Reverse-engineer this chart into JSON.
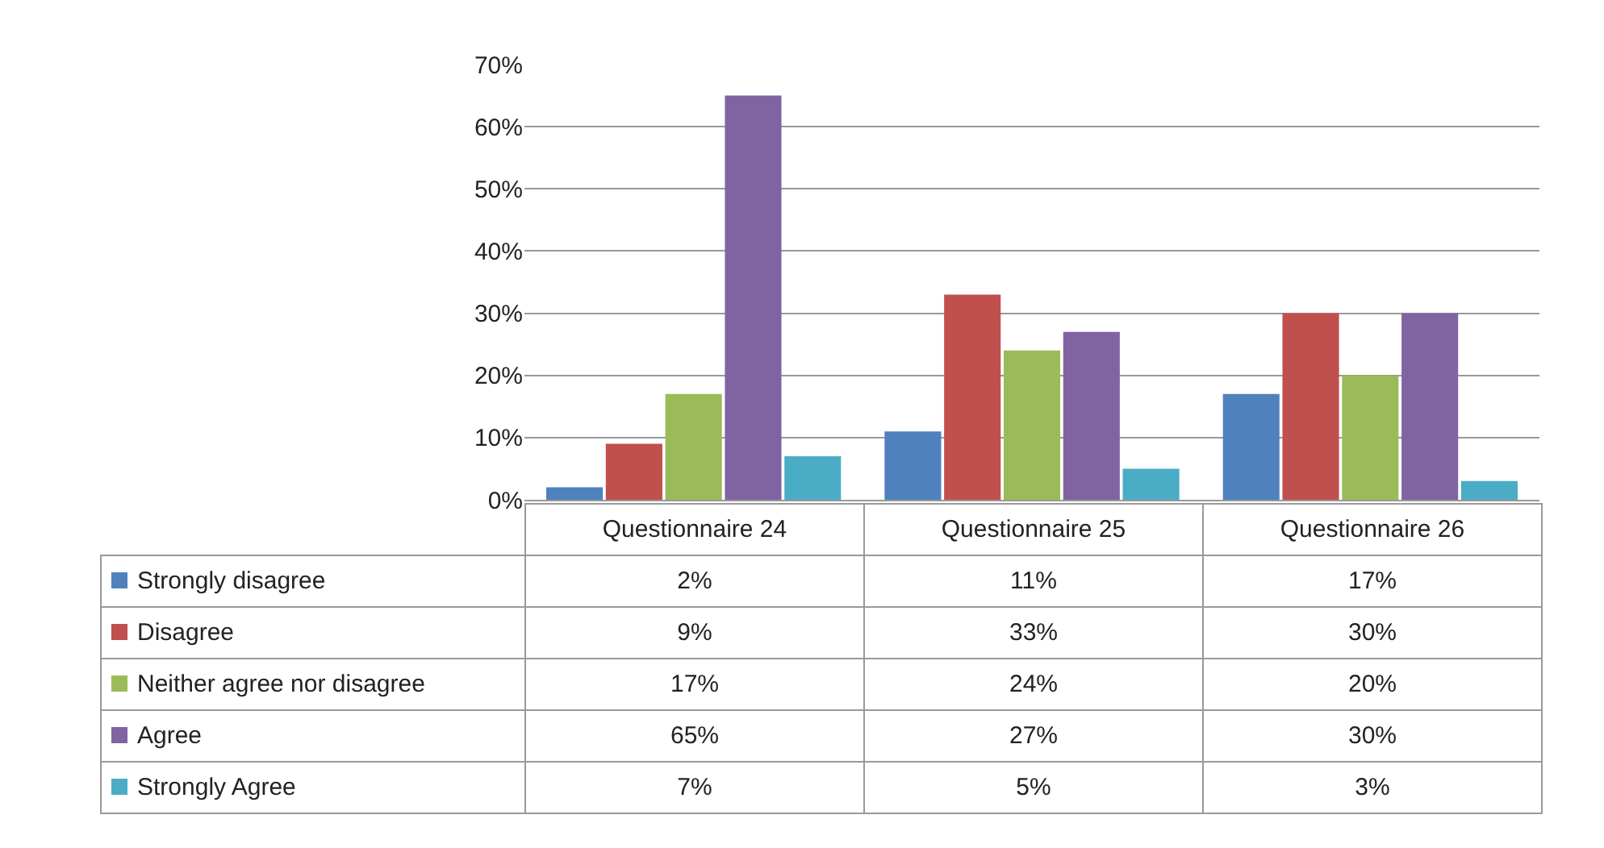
{
  "chart_data": {
    "type": "bar",
    "categories": [
      "Questionnaire 24",
      "Questionnaire 25",
      "Questionnaire 26"
    ],
    "series": [
      {
        "name": "Strongly disagree",
        "color": "#4f81bd",
        "values": [
          2,
          11,
          17
        ],
        "value_labels": [
          "2%",
          "11%",
          "17%"
        ]
      },
      {
        "name": "Disagree",
        "color": "#c0504d",
        "values": [
          9,
          33,
          30
        ],
        "value_labels": [
          "9%",
          "33%",
          "30%"
        ]
      },
      {
        "name": "Neither agree nor disagree",
        "color": "#9bbb59",
        "values": [
          17,
          24,
          20
        ],
        "value_labels": [
          "17%",
          "24%",
          "20%"
        ]
      },
      {
        "name": "Agree",
        "color": "#8064a2",
        "values": [
          65,
          27,
          30
        ],
        "value_labels": [
          "65%",
          "27%",
          "30%"
        ]
      },
      {
        "name": "Strongly Agree",
        "color": "#4bacc6",
        "values": [
          7,
          5,
          3
        ],
        "value_labels": [
          "7%",
          "5%",
          "3%"
        ]
      }
    ],
    "ylim": [
      0,
      70
    ],
    "yticks": [
      {
        "value": 0,
        "label": "0%"
      },
      {
        "value": 10,
        "label": "10%"
      },
      {
        "value": 20,
        "label": "20%"
      },
      {
        "value": 30,
        "label": "30%"
      },
      {
        "value": 40,
        "label": "40%"
      },
      {
        "value": 50,
        "label": "50%"
      },
      {
        "value": 60,
        "label": "60%"
      },
      {
        "value": 70,
        "label": "70%"
      }
    ],
    "grid": "y",
    "legend": "bottom left"
  }
}
